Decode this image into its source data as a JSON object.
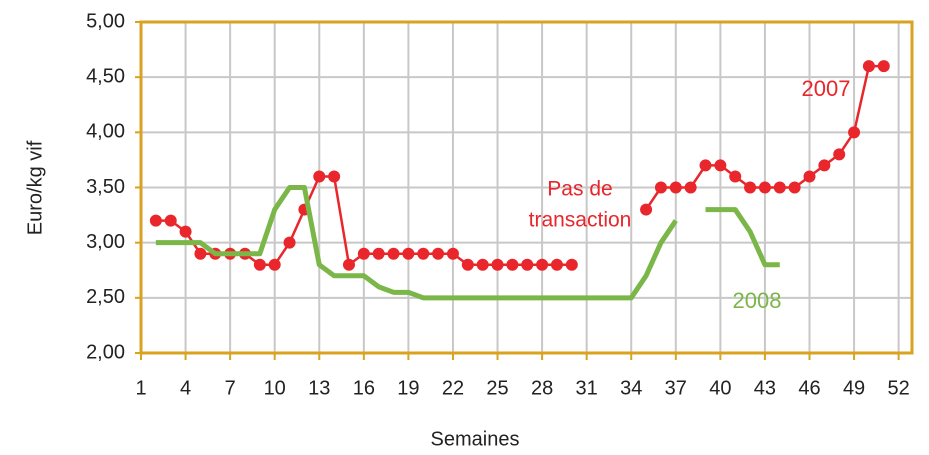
{
  "chart_data": {
    "type": "line",
    "xlabel": "Semaines",
    "ylabel": "Euro/kg vif",
    "x": [
      2,
      3,
      4,
      5,
      6,
      7,
      8,
      9,
      10,
      11,
      12,
      13,
      14,
      15,
      16,
      17,
      18,
      19,
      20,
      21,
      22,
      23,
      24,
      25,
      26,
      27,
      28,
      29,
      30,
      31,
      32,
      33,
      34,
      35,
      36,
      37,
      38,
      39,
      40,
      41,
      42,
      43,
      44,
      45,
      46,
      47,
      48,
      49,
      50,
      51
    ],
    "series": [
      {
        "name": "2007",
        "color": "#e8262b",
        "markers": true,
        "values": [
          3.2,
          3.2,
          3.1,
          2.9,
          2.9,
          2.9,
          2.9,
          2.8,
          2.8,
          3.0,
          3.3,
          3.6,
          3.6,
          2.8,
          2.9,
          2.9,
          2.9,
          2.9,
          2.9,
          2.9,
          2.9,
          2.8,
          2.8,
          2.8,
          2.8,
          2.8,
          2.8,
          2.8,
          2.8,
          null,
          null,
          null,
          null,
          3.3,
          3.5,
          3.5,
          3.5,
          3.7,
          3.7,
          3.6,
          3.5,
          3.5,
          3.5,
          3.5,
          3.6,
          3.7,
          3.8,
          4.0,
          4.6,
          4.6
        ]
      },
      {
        "name": "2008",
        "color": "#7ab648",
        "markers": false,
        "values": [
          3.0,
          3.0,
          3.0,
          3.0,
          2.9,
          2.9,
          2.9,
          2.9,
          3.3,
          3.5,
          3.5,
          2.8,
          2.7,
          2.7,
          2.7,
          2.6,
          2.55,
          2.55,
          2.5,
          2.5,
          2.5,
          2.5,
          2.5,
          2.5,
          2.5,
          2.5,
          2.5,
          2.5,
          2.5,
          2.5,
          2.5,
          2.5,
          2.5,
          2.7,
          3.0,
          3.2,
          null,
          3.3,
          3.3,
          3.3,
          3.1,
          2.8,
          2.8,
          null,
          null,
          null,
          null,
          null,
          null,
          null
        ]
      }
    ],
    "annotations": [
      {
        "lines": [
          "Pas de",
          "transaction"
        ]
      }
    ],
    "xlim": [
      1,
      52.9
    ],
    "ylim": [
      2,
      5
    ],
    "xticks": [
      1,
      4,
      7,
      10,
      13,
      16,
      19,
      22,
      25,
      28,
      31,
      34,
      37,
      40,
      43,
      46,
      49,
      52
    ],
    "yticks": [
      {
        "value": 2,
        "label": "2,00"
      },
      {
        "value": 2.5,
        "label": "2,50"
      },
      {
        "value": 3,
        "label": "3,00"
      },
      {
        "value": 3.5,
        "label": "3,50"
      },
      {
        "value": 4,
        "label": "4,00"
      },
      {
        "value": 4.5,
        "label": "4,50"
      },
      {
        "value": 5,
        "label": "5,00"
      }
    ],
    "grid": true,
    "frame_color": "#d9a21f"
  }
}
